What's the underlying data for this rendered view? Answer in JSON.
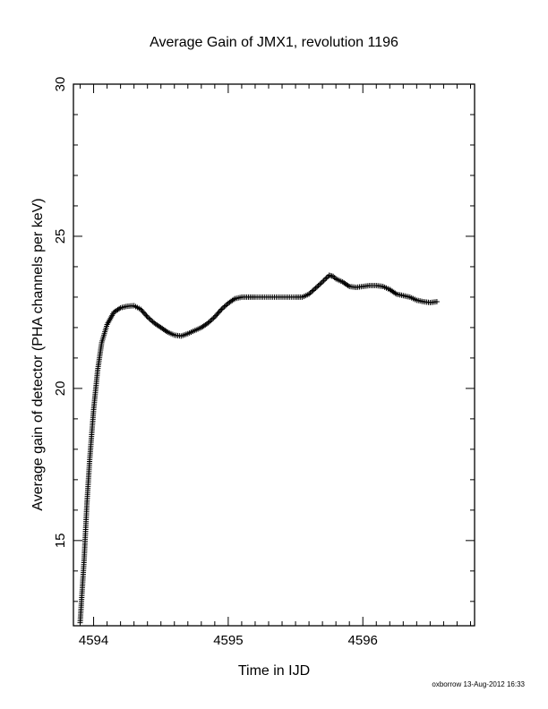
{
  "chart_data": {
    "type": "scatter",
    "marker": "plus",
    "title": "Average Gain of JMX1, revolution 1196",
    "xlabel": "Time in IJD",
    "ylabel": "Average gain of detector (PHA channels per keV)",
    "xlim": [
      4593.85,
      4596.83
    ],
    "ylim": [
      12.2,
      30
    ],
    "xticks": [
      4594,
      4595,
      4596
    ],
    "yticks": [
      15,
      20,
      25,
      30
    ],
    "grid": false,
    "series": [
      {
        "x": [
          4593.9,
          4593.93,
          4593.95,
          4593.97,
          4594.0,
          4594.03,
          4594.06,
          4594.1,
          4594.15,
          4594.2,
          4594.25,
          4594.3,
          4594.35,
          4594.4,
          4594.45,
          4594.5,
          4594.55,
          4594.6,
          4594.65,
          4594.7,
          4594.75,
          4594.8,
          4594.85,
          4594.9,
          4594.95,
          4595.0,
          4595.05,
          4595.1,
          4595.15,
          4595.2,
          4595.3,
          4595.4,
          4595.5,
          4595.55,
          4595.6,
          4595.65,
          4595.7,
          4595.75,
          4595.78,
          4595.8,
          4595.85,
          4595.9,
          4595.95,
          4596.0,
          4596.05,
          4596.1,
          4596.15,
          4596.2,
          4596.25,
          4596.3,
          4596.35,
          4596.4,
          4596.45,
          4596.5,
          4596.55
        ],
        "y": [
          12.3,
          14.4,
          16.2,
          17.6,
          19.3,
          20.6,
          21.5,
          22.1,
          22.5,
          22.65,
          22.7,
          22.72,
          22.6,
          22.35,
          22.15,
          22.0,
          21.85,
          21.75,
          21.72,
          21.8,
          21.9,
          22.0,
          22.15,
          22.35,
          22.6,
          22.8,
          22.95,
          23.0,
          23.0,
          23.0,
          23.0,
          23.0,
          23.0,
          23.0,
          23.1,
          23.3,
          23.5,
          23.72,
          23.68,
          23.6,
          23.5,
          23.35,
          23.32,
          23.35,
          23.38,
          23.38,
          23.35,
          23.25,
          23.1,
          23.05,
          23.0,
          22.9,
          22.85,
          22.82,
          22.85
        ]
      }
    ]
  },
  "footer": "oxborrow 13-Aug-2012 16:33"
}
